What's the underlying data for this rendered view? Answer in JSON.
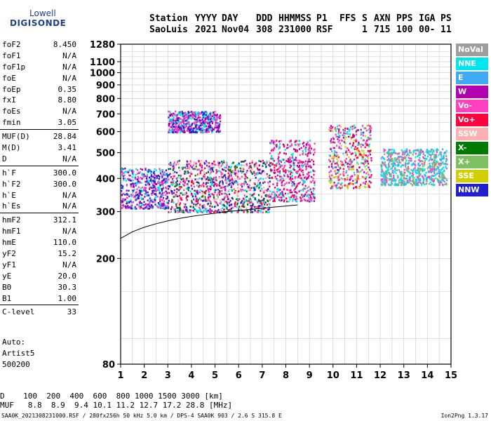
{
  "logo": {
    "line1": "Lowell",
    "line2": "DIGISONDE"
  },
  "header": {
    "labels": [
      "Station",
      "YYYY",
      "DAY",
      "DDD",
      "HHMMSS",
      "P1",
      "FFS",
      "S",
      "AXN",
      "PPS",
      "IGA",
      "PS"
    ],
    "values": [
      "SaoLuis",
      "2021",
      "Nov04",
      "308",
      "231000",
      "RSF",
      "1",
      "715",
      "100",
      "00-",
      "11"
    ]
  },
  "params": [
    {
      "name": "foF2",
      "value": "8.450"
    },
    {
      "name": "foF1",
      "value": "N/A"
    },
    {
      "name": "foF1p",
      "value": "N/A"
    },
    {
      "name": "foE",
      "value": "N/A"
    },
    {
      "name": "foEp",
      "value": "0.35"
    },
    {
      "name": "fxI",
      "value": "8.80"
    },
    {
      "name": "foEs",
      "value": "N/A"
    },
    {
      "name": "fmin",
      "value": "3.05"
    },
    {
      "name": "MUF(D)",
      "value": "28.84",
      "sep": true
    },
    {
      "name": "M(D)",
      "value": "3.41"
    },
    {
      "name": "D",
      "value": "N/A"
    },
    {
      "name": "h`F",
      "value": "300.0",
      "sep": true
    },
    {
      "name": "h`F2",
      "value": "300.0"
    },
    {
      "name": "h`E",
      "value": "N/A"
    },
    {
      "name": "h`Es",
      "value": "N/A"
    },
    {
      "name": "hmF2",
      "value": "312.1",
      "sep": true
    },
    {
      "name": "hmF1",
      "value": "N/A"
    },
    {
      "name": "hmE",
      "value": "110.0"
    },
    {
      "name": "yF2",
      "value": "15.2"
    },
    {
      "name": "yF1",
      "value": "N/A"
    },
    {
      "name": "yE",
      "value": "20.0"
    },
    {
      "name": "B0",
      "value": "30.3"
    },
    {
      "name": "B1",
      "value": "1.00"
    },
    {
      "name": "C-level",
      "value": "33",
      "sep": true
    }
  ],
  "auto": [
    "Auto:",
    "Artist5",
    "500200"
  ],
  "legend": [
    {
      "label": "NoVal",
      "color": "#9e9e9e"
    },
    {
      "label": "NNE",
      "color": "#00e5ee"
    },
    {
      "label": "E",
      "color": "#3fa9f5"
    },
    {
      "label": "W",
      "color": "#b000b0"
    },
    {
      "label": "Vo-",
      "color": "#ff40c0"
    },
    {
      "label": "Vo+",
      "color": "#ff0040"
    },
    {
      "label": "SSW",
      "color": "#ffb0b0"
    },
    {
      "label": "X-",
      "color": "#007a00"
    },
    {
      "label": "X+",
      "color": "#7cc060"
    },
    {
      "label": "SSE",
      "color": "#d0d000"
    },
    {
      "label": "NNW",
      "color": "#2020d0"
    }
  ],
  "bottom": {
    "d_line": "D    100  200  400  600  800 1000 1500 3000 [km]",
    "muf_line": "MUF   8.8  8.9  9.4 10.1 11.2 12.7 17.2 28.8 [MHz]"
  },
  "footer": "SAA0K_2021308231000.RSF / 280fx256h 50 kHz 5.0 km / DPS-4 SAA0K 903 / 2.6 S 315.8 E",
  "footer_right": "Ion2Png 1.3.17",
  "chart_data": {
    "type": "scatter",
    "xlim": [
      1,
      15
    ],
    "ylim": [
      80,
      1280
    ],
    "xticks": [
      1,
      2,
      3,
      4,
      5,
      6,
      7,
      8,
      9,
      10,
      11,
      12,
      13,
      14,
      15
    ],
    "yticks": [
      80,
      200,
      300,
      400,
      500,
      600,
      700,
      800,
      900,
      1000,
      1100,
      1280
    ],
    "yscale": "log",
    "grid": true,
    "legend_position": "right",
    "trace": {
      "x": [
        1.0,
        1.5,
        2.0,
        2.5,
        3.0,
        3.5,
        4.0,
        4.5,
        5.0,
        5.5,
        6.0,
        6.5,
        7.0,
        7.5,
        8.0,
        8.5
      ],
      "y": [
        238,
        252,
        262,
        270,
        277,
        283,
        288,
        292,
        296,
        300,
        303,
        306,
        309,
        312,
        315,
        318
      ]
    },
    "clusters": [
      {
        "x": [
          1.0,
          3.0
        ],
        "y": [
          310,
          440
        ],
        "colors": [
          "#2020d0",
          "#b000b0",
          "#ff40c0",
          "#00e5ee"
        ]
      },
      {
        "x": [
          3.0,
          7.3
        ],
        "y": [
          300,
          470
        ],
        "colors": [
          "#ff40c0",
          "#b000b0",
          "#ff0040",
          "#2020d0",
          "#ffb0b0",
          "#00e5ee",
          "#007a00"
        ]
      },
      {
        "x": [
          3.0,
          5.2
        ],
        "y": [
          600,
          720
        ],
        "colors": [
          "#b000b0",
          "#2020d0",
          "#ff40c0",
          "#00e5ee"
        ]
      },
      {
        "x": [
          7.3,
          9.2
        ],
        "y": [
          330,
          560
        ],
        "colors": [
          "#ff40c0",
          "#b000b0",
          "#ff0040",
          "#00e5ee"
        ]
      },
      {
        "x": [
          9.8,
          11.6
        ],
        "y": [
          370,
          640
        ],
        "colors": [
          "#ff0040",
          "#ff40c0",
          "#b000b0",
          "#00e5ee",
          "#d0d000"
        ]
      },
      {
        "x": [
          12.0,
          14.8
        ],
        "y": [
          380,
          520
        ],
        "colors": [
          "#00e5ee",
          "#3fa9f5",
          "#ff40c0",
          "#7cc060"
        ]
      }
    ]
  }
}
